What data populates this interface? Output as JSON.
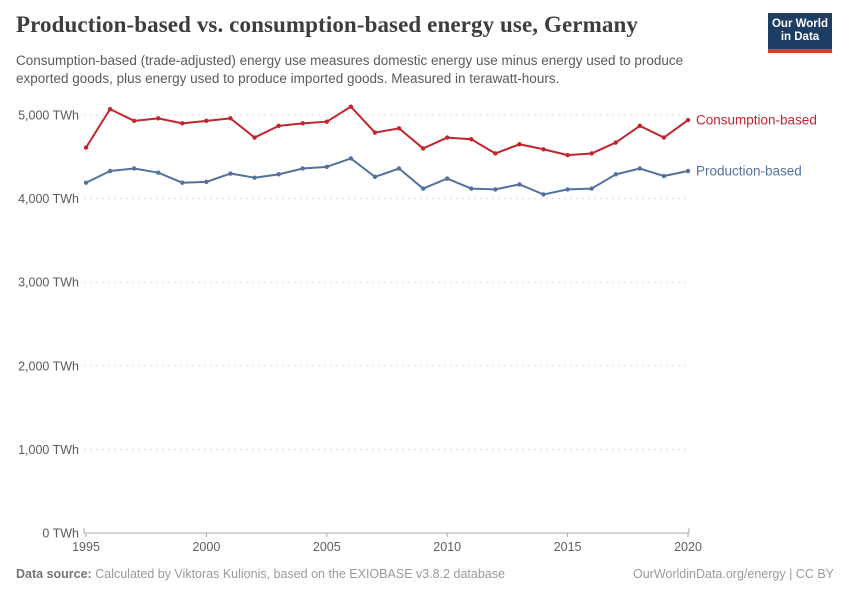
{
  "header": {
    "title": "Production-based vs. consumption-based energy use, Germany",
    "subtitle": "Consumption-based (trade-adjusted) energy use measures domestic energy use minus energy used to produce exported goods, plus energy used to produce imported goods. Measured in terawatt-hours.",
    "logo": {
      "line1": "Our World",
      "line2": "in Data",
      "bg_color": "#1d3d63",
      "accent_color": "#dc3b32"
    }
  },
  "chart_data": {
    "type": "line",
    "title": "Production-based vs. consumption-based energy use, Germany",
    "x": [
      1995,
      1996,
      1997,
      1998,
      1999,
      2000,
      2001,
      2002,
      2003,
      2004,
      2005,
      2006,
      2007,
      2008,
      2009,
      2010,
      2011,
      2012,
      2013,
      2014,
      2015,
      2016,
      2017,
      2018,
      2019,
      2020
    ],
    "series": [
      {
        "name": "Consumption-based",
        "color": "#c2252e",
        "values": [
          4610,
          5070,
          4930,
          4960,
          4900,
          4930,
          4960,
          4730,
          4870,
          4900,
          4920,
          5100,
          4790,
          4840,
          4600,
          4730,
          4710,
          4540,
          4650,
          4590,
          4520,
          4540,
          4670,
          4870,
          4730,
          4940
        ]
      },
      {
        "name": "Production-based",
        "color": "#53719f",
        "values": [
          4190,
          4330,
          4360,
          4310,
          4190,
          4200,
          4300,
          4250,
          4290,
          4360,
          4380,
          4480,
          4260,
          4360,
          4120,
          4240,
          4120,
          4110,
          4170,
          4050,
          4110,
          4120,
          4290,
          4360,
          4270,
          4330
        ]
      }
    ],
    "xlabel": "",
    "ylabel": "",
    "unit": "TWh",
    "ylim": [
      0,
      5000
    ],
    "yticks": [
      {
        "value": 0,
        "label": "0 TWh"
      },
      {
        "value": 1000,
        "label": "1,000 TWh"
      },
      {
        "value": 2000,
        "label": "2,000 TWh"
      },
      {
        "value": 3000,
        "label": "3,000 TWh"
      },
      {
        "value": 4000,
        "label": "4,000 TWh"
      },
      {
        "value": 5000,
        "label": "5,000 TWh"
      }
    ],
    "xtick_labels": [
      "1995",
      "2000",
      "2005",
      "2010",
      "2015",
      "2020"
    ],
    "grid": "horizontal-dashed",
    "legend_position": "right-of-line-end"
  },
  "footer": {
    "source_label": "Data source:",
    "source_text": "Calculated by Viktoras Kulionis, based on the EXIOBASE v3.8.2 database",
    "credit_text": "OurWorldinData.org/energy | CC BY"
  }
}
